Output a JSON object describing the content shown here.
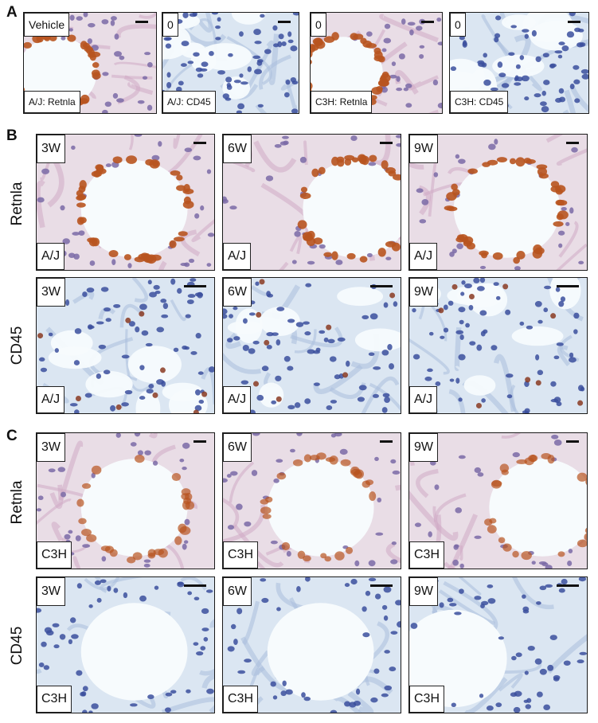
{
  "panel_letters": {
    "a": "A",
    "b": "B",
    "c": "C"
  },
  "row_labels": {
    "b_retnla": "Retnla",
    "b_cd45": "CD45",
    "c_retnla": "Retnla",
    "c_cd45": "CD45"
  },
  "panel_a": [
    {
      "top_label": "Vehicle",
      "bottom_label": "A/J: Retnla",
      "stain": "retnla"
    },
    {
      "top_label": "0",
      "bottom_label": "A/J: CD45",
      "stain": "cd45"
    },
    {
      "top_label": "0",
      "bottom_label": "C3H: Retnla",
      "stain": "retnla"
    },
    {
      "top_label": "0",
      "bottom_label": "C3H: CD45",
      "stain": "cd45"
    }
  ],
  "panel_b": {
    "retnla": [
      {
        "top_label": "3W",
        "bottom_label": "A/J"
      },
      {
        "top_label": "6W",
        "bottom_label": "A/J"
      },
      {
        "top_label": "9W",
        "bottom_label": "A/J"
      }
    ],
    "cd45": [
      {
        "top_label": "3W",
        "bottom_label": "A/J"
      },
      {
        "top_label": "6W",
        "bottom_label": "A/J"
      },
      {
        "top_label": "9W",
        "bottom_label": "A/J"
      }
    ]
  },
  "panel_c": {
    "retnla": [
      {
        "top_label": "3W",
        "bottom_label": "C3H"
      },
      {
        "top_label": "6W",
        "bottom_label": "C3H"
      },
      {
        "top_label": "9W",
        "bottom_label": "C3H"
      }
    ],
    "cd45": [
      {
        "top_label": "3W",
        "bottom_label": "C3H"
      },
      {
        "top_label": "6W",
        "bottom_label": "C3H"
      },
      {
        "top_label": "9W",
        "bottom_label": "C3H"
      }
    ]
  },
  "colors": {
    "retnla_background": "#e9dde6",
    "retnla_stain": "#b8541f",
    "cd45_background": "#dbe6f2",
    "cd45_nuclei": "#3b4f9e",
    "lumen": "#f7fbfd"
  }
}
